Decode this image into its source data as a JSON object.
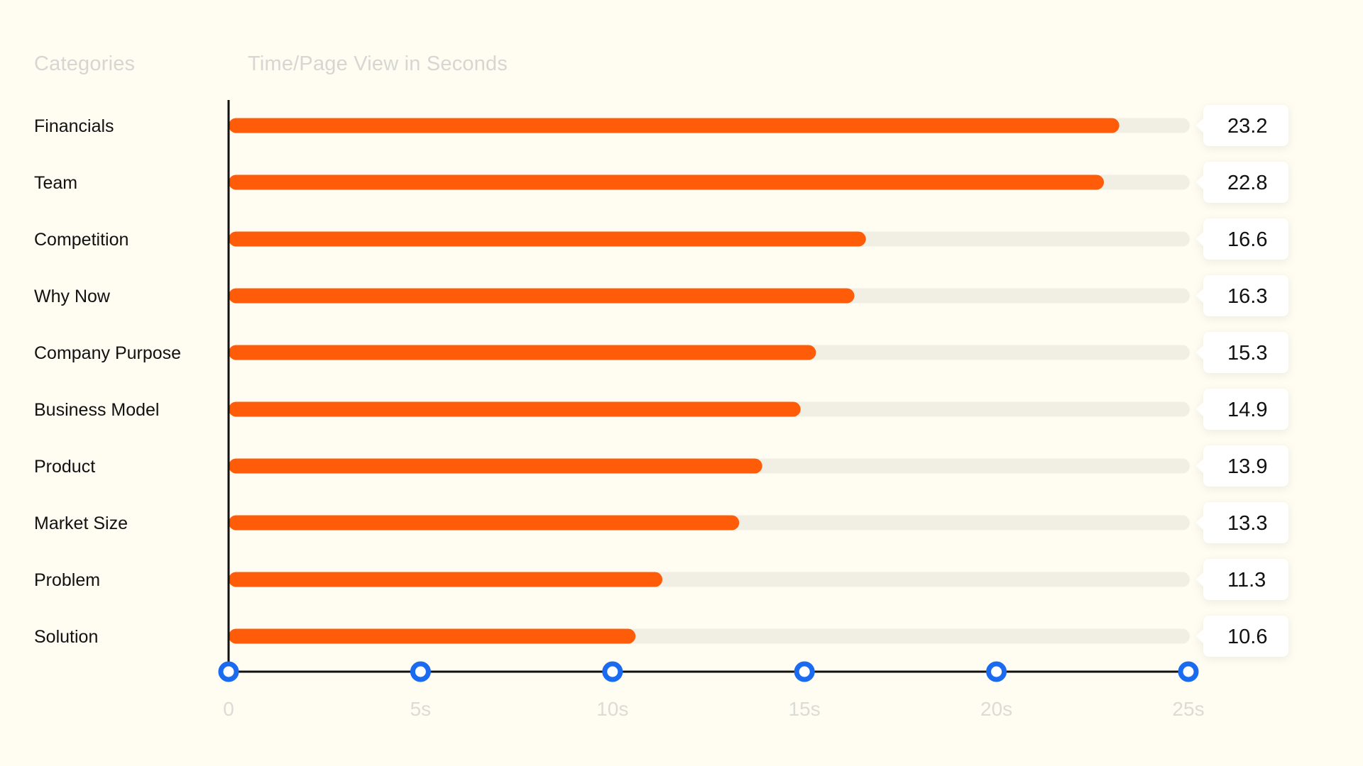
{
  "headers": {
    "categories": "Categories",
    "value": "Time/Page View in Seconds"
  },
  "colors": {
    "bar": "#ff5c0a",
    "track": "#f1eee3",
    "axis": "#111111",
    "marker": "#1a6bf0",
    "badge": "#ffffff",
    "background": "#fffdf1"
  },
  "chart_data": {
    "type": "bar",
    "orientation": "horizontal",
    "title": "",
    "xlabel": "Time/Page View in Seconds",
    "ylabel": "Categories",
    "xlim": [
      0,
      25
    ],
    "grid": false,
    "categories": [
      "Financials",
      "Team",
      "Competition",
      "Why Now",
      "Company Purpose",
      "Business Model",
      "Product",
      "Market Size",
      "Problem",
      "Solution"
    ],
    "values": [
      23.2,
      22.8,
      16.6,
      16.3,
      15.3,
      14.9,
      13.9,
      13.3,
      11.3,
      10.6
    ],
    "value_labels": [
      "23.2",
      "22.8",
      "16.6",
      "16.3",
      "15.3",
      "14.9",
      "13.9",
      "13.3",
      "11.3",
      "10.6"
    ],
    "ticks": [
      0,
      5,
      10,
      15,
      20,
      25
    ],
    "tick_labels": [
      "0",
      "5s",
      "10s",
      "15s",
      "20s",
      "25s"
    ]
  }
}
